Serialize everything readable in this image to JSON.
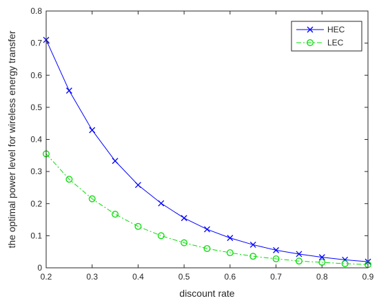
{
  "chart_data": {
    "type": "line",
    "title": "",
    "xlabel": "discount rate",
    "ylabel": "the optimal power level for wireless energy transfer",
    "xlim": [
      0.2,
      0.9
    ],
    "ylim": [
      0,
      0.8
    ],
    "xticks": [
      "0.2",
      "0.3",
      "0.4",
      "0.5",
      "0.6",
      "0.7",
      "0.8",
      "0.9"
    ],
    "yticks": [
      "0",
      "0.1",
      "0.2",
      "0.3",
      "0.4",
      "0.5",
      "0.6",
      "0.7",
      "0.8"
    ],
    "grid": false,
    "legend_position": "top-right",
    "x": [
      0.2,
      0.25,
      0.3,
      0.35,
      0.4,
      0.45,
      0.5,
      0.55,
      0.6,
      0.65,
      0.7,
      0.75,
      0.8,
      0.85,
      0.9
    ],
    "series": [
      {
        "name": "HEC",
        "color": "#0000ff",
        "marker": "x",
        "line_style": "solid",
        "values": [
          0.71,
          0.552,
          0.429,
          0.333,
          0.258,
          0.201,
          0.155,
          0.12,
          0.093,
          0.072,
          0.055,
          0.043,
          0.033,
          0.025,
          0.019
        ]
      },
      {
        "name": "LEC",
        "color": "#00dd00",
        "marker": "circle",
        "line_style": "dash-dot",
        "values": [
          0.355,
          0.276,
          0.215,
          0.167,
          0.129,
          0.1,
          0.078,
          0.06,
          0.047,
          0.036,
          0.028,
          0.021,
          0.017,
          0.013,
          0.01
        ]
      }
    ]
  }
}
